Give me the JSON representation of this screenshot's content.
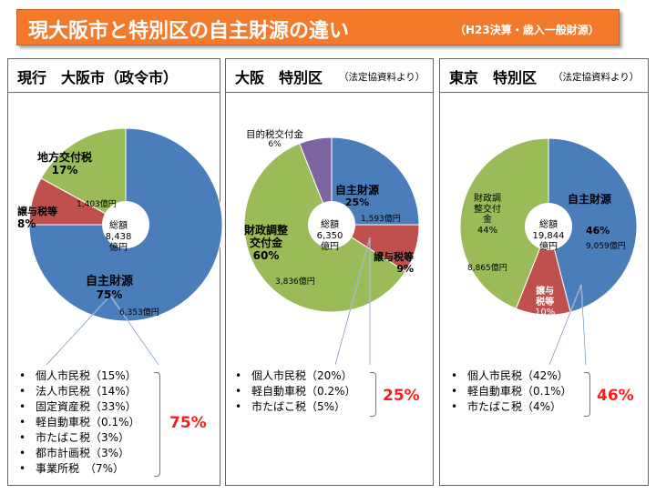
{
  "title": "現大阪市と特別区の自主財源の違い",
  "subtitle": "（H23決算・歳入一般財源）",
  "panels": [
    {
      "heading": "現行　大阪市",
      "heading_suffix": "（政令市）",
      "note": "",
      "center": {
        "line1": "総額",
        "line2": "8,438",
        "line3": "億円"
      },
      "slices": [
        {
          "name": "自主財源",
          "pct_label": "75%",
          "amount_label": "6,353億円"
        },
        {
          "name": "譲与税等",
          "pct_label": "8%",
          "amount_label": ""
        },
        {
          "name": "地方交付税",
          "pct_label": "17%",
          "amount_label": "1,403億円"
        }
      ],
      "list": [
        "個人市民税（15%）",
        "法人市民税（14%）",
        "固定資産税（33%）",
        "軽自動車税（0.1%）",
        "市たばこ税（3%）",
        "都市計画税（3%）",
        "事業所税　（7%）"
      ],
      "list_total": "75%"
    },
    {
      "heading": "大阪　特別区",
      "heading_suffix": "",
      "note": "（法定協資料より）",
      "center": {
        "line1": "総額",
        "line2": "6,350",
        "line3": "億円"
      },
      "slices": [
        {
          "name": "自主財源",
          "pct_label": "25%",
          "amount_label": "1,593億円"
        },
        {
          "name": "譲与税等",
          "pct_label": "9%",
          "amount_label": ""
        },
        {
          "name": "財政調整交付金",
          "name_line1": "財政調整",
          "name_line2": "交付金",
          "pct_label": "60%",
          "amount_label": "3,836億円"
        },
        {
          "name": "目的税交付金",
          "pct_label": "6%",
          "amount_label": ""
        }
      ],
      "list": [
        "個人市民税（20%）",
        "軽自動車税（0.2%）",
        "市たばこ税（5%）"
      ],
      "list_total": "25%"
    },
    {
      "heading": "東京　特別区",
      "heading_suffix": "",
      "note": "（法定協資料より）",
      "center": {
        "line1": "総額",
        "line2": "19,844",
        "line3": "億円"
      },
      "slices": [
        {
          "name": "自主財源",
          "pct_label": "46%",
          "amount_label": "9,059億円"
        },
        {
          "name": "譲与税等",
          "name_line1": "譲与",
          "name_line2": "税等",
          "pct_label": "10%",
          "amount_label": ""
        },
        {
          "name": "財政調整交付金",
          "name_line1": "財政調",
          "name_line2": "整交付",
          "name_line3": "金",
          "pct_label": "44%",
          "amount_label": "8,865億円"
        }
      ],
      "list": [
        "個人市民税（42%）",
        "軽自動車税（0.1%）",
        "市たばこ税（4%）"
      ],
      "list_total": "46%"
    }
  ],
  "chart_data": [
    {
      "type": "pie",
      "title": "現行　大阪市（政令市）",
      "total_label": "総額 8,438億円",
      "labels": [
        "自主財源",
        "譲与税等",
        "地方交付税"
      ],
      "values": [
        75,
        8,
        17
      ],
      "amounts_oku_yen": [
        6353,
        null,
        1403
      ],
      "colors": [
        "#4a7ebb",
        "#c0504d",
        "#9bbb59"
      ]
    },
    {
      "type": "pie",
      "title": "大阪　特別区",
      "total_label": "総額 6,350億円",
      "labels": [
        "自主財源",
        "譲与税等",
        "財政調整交付金",
        "目的税交付金"
      ],
      "values": [
        25,
        9,
        60,
        6
      ],
      "amounts_oku_yen": [
        1593,
        null,
        3836,
        null
      ],
      "colors": [
        "#4a7ebb",
        "#c0504d",
        "#9bbb59",
        "#8064a2"
      ]
    },
    {
      "type": "pie",
      "title": "東京　特別区",
      "total_label": "総額 19,844億円",
      "labels": [
        "自主財源",
        "譲与税等",
        "財政調整交付金"
      ],
      "values": [
        46,
        10,
        44
      ],
      "amounts_oku_yen": [
        9059,
        null,
        8865
      ],
      "colors": [
        "#4a7ebb",
        "#c0504d",
        "#9bbb59"
      ]
    }
  ]
}
